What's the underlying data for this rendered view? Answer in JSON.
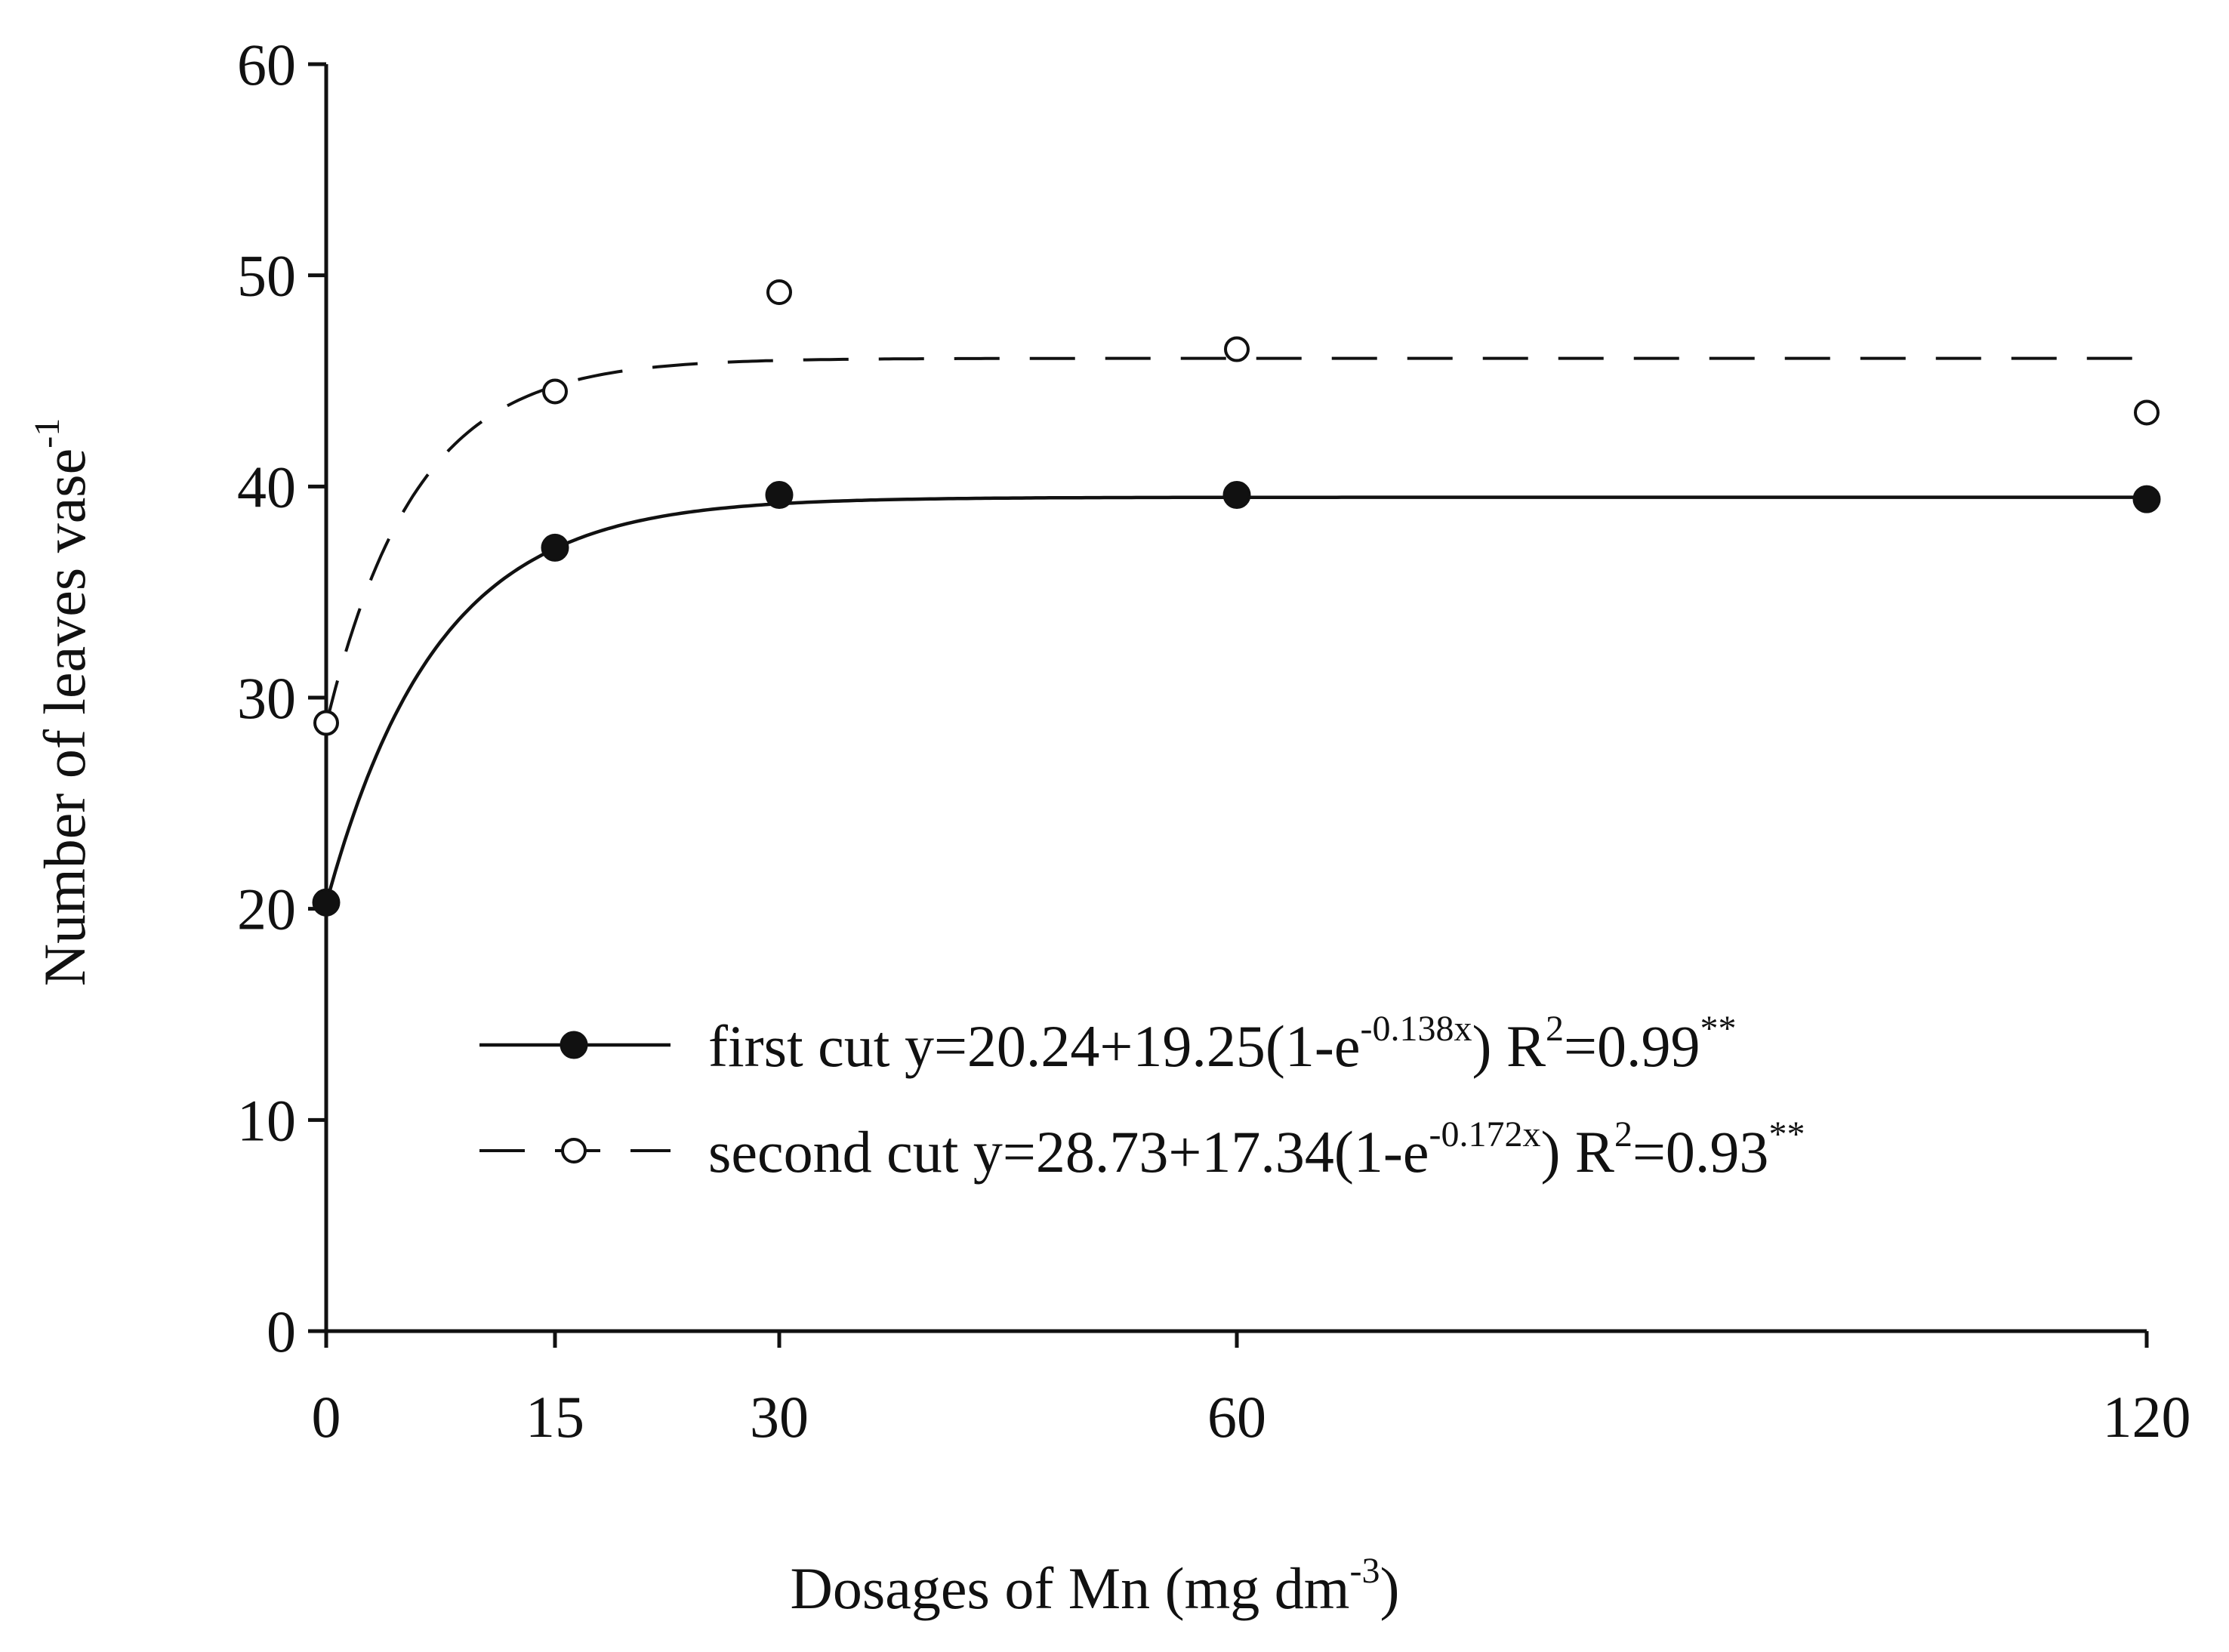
{
  "chart_data": {
    "type": "scatter",
    "xlabel": {
      "main": "Dosages of Mn (mg dm",
      "sup": "-3",
      "tail": ")"
    },
    "ylabel": {
      "main": "Number of leaves vase",
      "sup": "-1"
    },
    "x_ticks": [
      0,
      15,
      30,
      60,
      120
    ],
    "x_tick_labels": [
      "0",
      "15",
      "30",
      "60",
      "120"
    ],
    "y_ticks": [
      0,
      10,
      20,
      30,
      40,
      50,
      60
    ],
    "y_tick_labels": [
      "0",
      "10",
      "20",
      "30",
      "40",
      "50",
      "60"
    ],
    "xlim": [
      0,
      120
    ],
    "ylim": [
      0,
      60
    ],
    "x_scale": "categorical-spaced",
    "grid": false,
    "legend_position": "lower-right",
    "series": [
      {
        "name": "first cut",
        "marker": "filled-circle",
        "line_style": "solid",
        "x": [
          0,
          15,
          30,
          60,
          120
        ],
        "y": [
          20.3,
          37.1,
          39.6,
          39.6,
          39.4
        ],
        "fit": {
          "a": 20.24,
          "b": 19.25,
          "k": 0.138
        },
        "legend": {
          "name": "first cut",
          "eq_pre": "y=20.24+19.25(1-e",
          "eq_exp": "-0.138x",
          "eq_mid": ") R",
          "r2_sup": "2",
          "r2_val": "=0.99",
          "sig": "**"
        }
      },
      {
        "name": "second cut",
        "marker": "open-circle",
        "line_style": "dashed",
        "x": [
          0,
          15,
          30,
          60,
          120
        ],
        "y": [
          28.8,
          44.5,
          49.2,
          46.5,
          43.5
        ],
        "fit": {
          "a": 28.73,
          "b": 17.34,
          "k": 0.172
        },
        "legend": {
          "name": "second cut",
          "eq_pre": "y=28.73+17.34(1-e",
          "eq_exp": "-0.172x",
          "eq_mid": ") R",
          "r2_sup": "2",
          "r2_val": "=0.93",
          "sig": "**"
        }
      }
    ]
  }
}
